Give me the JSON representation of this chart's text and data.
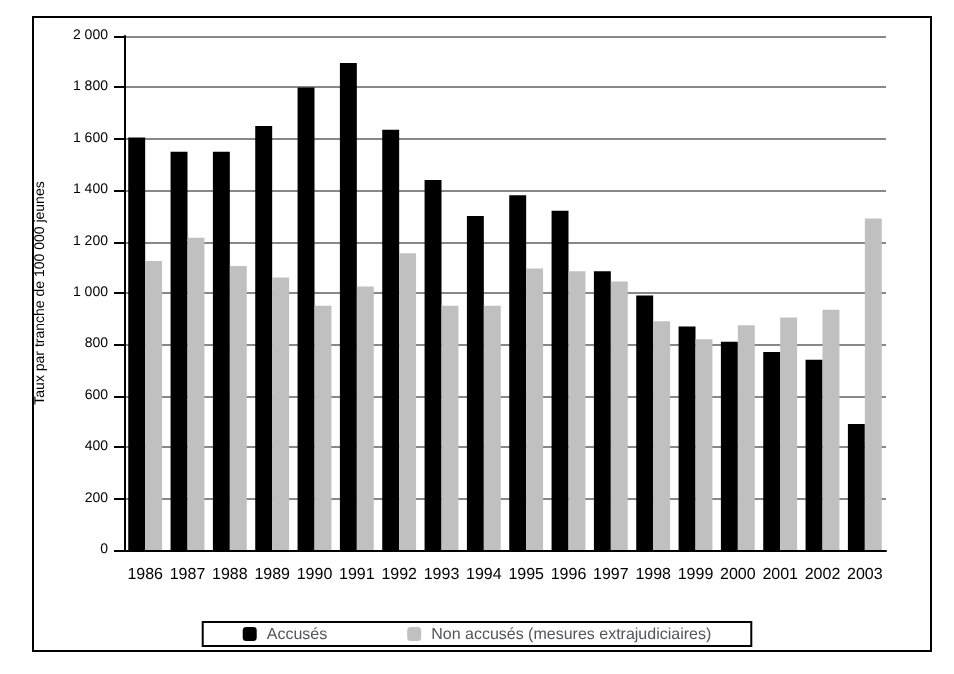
{
  "chart_data": {
    "type": "bar",
    "ylabel": "Taux par tranche de 100 000 jeunes",
    "categories": [
      "1986",
      "1987",
      "1988",
      "1989",
      "1990",
      "1991",
      "1992",
      "1993",
      "1994",
      "1995",
      "1996",
      "1997",
      "1998",
      "1999",
      "2000",
      "2001",
      "2002",
      "2003"
    ],
    "series": [
      {
        "name": "Accusés",
        "color": "#000000",
        "values": [
          1605,
          1550,
          1550,
          1650,
          1800,
          1895,
          1635,
          1440,
          1300,
          1380,
          1320,
          1085,
          990,
          870,
          810,
          770,
          740,
          490
        ]
      },
      {
        "name": "Non accusés (mesures extrajudiciaires)",
        "color": "#c0c0c0",
        "values": [
          1125,
          1215,
          1105,
          1060,
          950,
          1025,
          1155,
          950,
          950,
          1095,
          1085,
          1045,
          890,
          820,
          875,
          905,
          935,
          1290
        ]
      }
    ],
    "ylim": [
      0,
      2000
    ],
    "yticks": [
      0,
      200,
      400,
      600,
      800,
      {
        "value": 1000,
        "label": "1 000"
      },
      {
        "value": 1200,
        "label": "1 200"
      },
      {
        "value": 1400,
        "label": "1 400"
      },
      {
        "value": 1600,
        "label": "1 600"
      },
      {
        "value": 1800,
        "label": "1 800"
      },
      {
        "value": 2000,
        "label": "2 000"
      }
    ],
    "grid": "y",
    "legend": "bottom"
  }
}
